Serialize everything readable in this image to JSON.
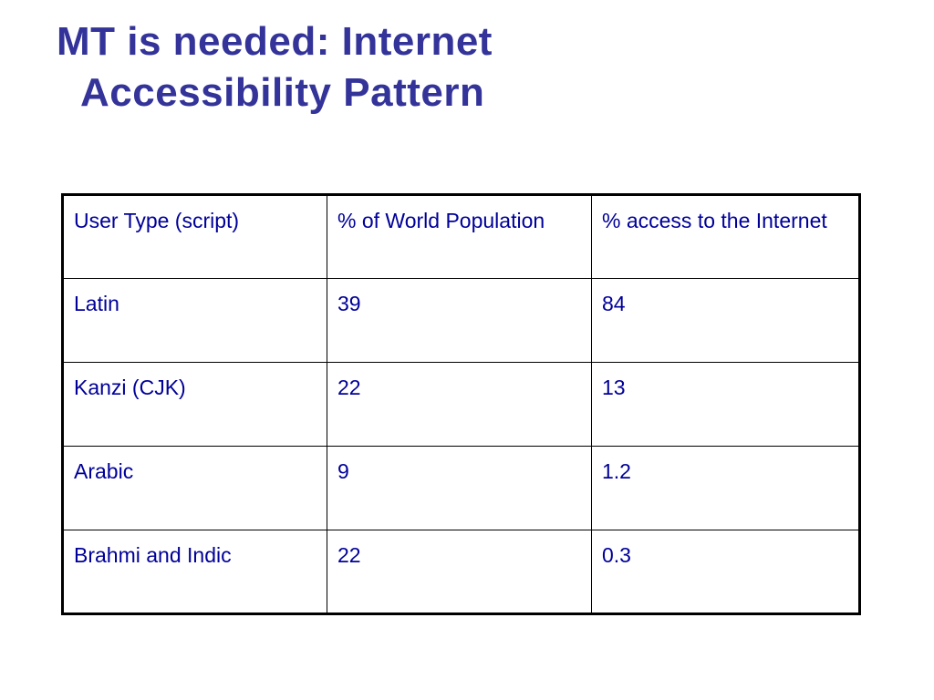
{
  "slide": {
    "title_line1": "MT is needed: Internet",
    "title_line2": "Accessibility Pattern"
  },
  "table": {
    "headers": [
      "User Type (script)",
      "% of World Population",
      "% access to the Internet"
    ],
    "rows": [
      [
        "Latin",
        "39",
        "84"
      ],
      [
        "Kanzi (CJK)",
        "22",
        "13"
      ],
      [
        "Arabic",
        "9",
        "1.2"
      ],
      [
        "Brahmi and Indic",
        "22",
        "0.3"
      ]
    ]
  },
  "colors": {
    "title": "#333399",
    "table_text": "#000099",
    "border": "#000000"
  }
}
